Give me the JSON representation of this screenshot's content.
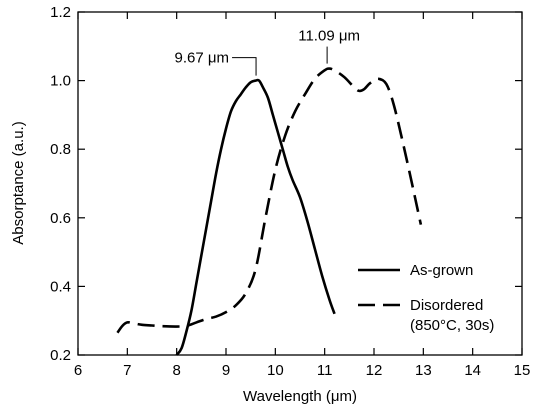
{
  "chart_data": {
    "type": "line",
    "title": "",
    "xlabel": "Wavelength (μm)",
    "ylabel": "Absorptance (a.u.)",
    "xlim": [
      6,
      15
    ],
    "ylim": [
      0.2,
      1.2
    ],
    "xticks": [
      6,
      7,
      8,
      9,
      10,
      11,
      12,
      13,
      14,
      15
    ],
    "yticks": [
      0.2,
      0.4,
      0.6,
      0.8,
      1.0,
      1.2
    ],
    "xtick_labels": [
      "6",
      "7",
      "8",
      "9",
      "10",
      "11",
      "12",
      "13",
      "14",
      "15"
    ],
    "ytick_labels": [
      "0.2",
      "0.4",
      "0.6",
      "0.8",
      "1.0",
      "1.2"
    ],
    "grid": false,
    "legend_position": "lower-right",
    "series": [
      {
        "name": "As-grown",
        "style": "solid",
        "color": "#000000",
        "points": [
          [
            8.0,
            0.2
          ],
          [
            8.1,
            0.22
          ],
          [
            8.2,
            0.27
          ],
          [
            8.3,
            0.33
          ],
          [
            8.4,
            0.41
          ],
          [
            8.5,
            0.49
          ],
          [
            8.6,
            0.57
          ],
          [
            8.7,
            0.65
          ],
          [
            8.8,
            0.73
          ],
          [
            8.9,
            0.8
          ],
          [
            9.0,
            0.86
          ],
          [
            9.1,
            0.91
          ],
          [
            9.2,
            0.94
          ],
          [
            9.3,
            0.96
          ],
          [
            9.4,
            0.98
          ],
          [
            9.5,
            0.995
          ],
          [
            9.6,
            1.0
          ],
          [
            9.67,
            1.0
          ],
          [
            9.75,
            0.98
          ],
          [
            9.85,
            0.95
          ],
          [
            9.95,
            0.9
          ],
          [
            10.05,
            0.85
          ],
          [
            10.15,
            0.8
          ],
          [
            10.25,
            0.75
          ],
          [
            10.35,
            0.71
          ],
          [
            10.5,
            0.66
          ],
          [
            10.65,
            0.59
          ],
          [
            10.8,
            0.51
          ],
          [
            10.95,
            0.43
          ],
          [
            11.1,
            0.36
          ],
          [
            11.2,
            0.32
          ]
        ]
      },
      {
        "name": "Disordered",
        "name_line2": "(850°C, 30s)",
        "style": "dashed",
        "color": "#000000",
        "points": [
          [
            6.8,
            0.265
          ],
          [
            6.9,
            0.285
          ],
          [
            7.0,
            0.295
          ],
          [
            7.1,
            0.293
          ],
          [
            7.3,
            0.288
          ],
          [
            7.5,
            0.286
          ],
          [
            7.7,
            0.284
          ],
          [
            8.0,
            0.283
          ],
          [
            8.2,
            0.285
          ],
          [
            8.4,
            0.295
          ],
          [
            8.6,
            0.305
          ],
          [
            8.8,
            0.312
          ],
          [
            9.0,
            0.325
          ],
          [
            9.2,
            0.345
          ],
          [
            9.4,
            0.38
          ],
          [
            9.6,
            0.45
          ],
          [
            9.8,
            0.6
          ],
          [
            10.0,
            0.74
          ],
          [
            10.2,
            0.84
          ],
          [
            10.4,
            0.91
          ],
          [
            10.6,
            0.96
          ],
          [
            10.8,
            1.005
          ],
          [
            11.0,
            1.03
          ],
          [
            11.09,
            1.035
          ],
          [
            11.2,
            1.03
          ],
          [
            11.4,
            1.01
          ],
          [
            11.6,
            0.98
          ],
          [
            11.7,
            0.97
          ],
          [
            11.8,
            0.975
          ],
          [
            11.9,
            0.99
          ],
          [
            12.0,
            1.0
          ],
          [
            12.1,
            1.005
          ],
          [
            12.25,
            0.99
          ],
          [
            12.4,
            0.93
          ],
          [
            12.6,
            0.81
          ],
          [
            12.8,
            0.68
          ],
          [
            12.95,
            0.58
          ]
        ]
      }
    ],
    "annotations": [
      {
        "text": "9.67 μm",
        "x": 9.67,
        "y": 1.0
      },
      {
        "text": "11.09 μm",
        "x": 11.09,
        "y": 1.035
      }
    ]
  }
}
